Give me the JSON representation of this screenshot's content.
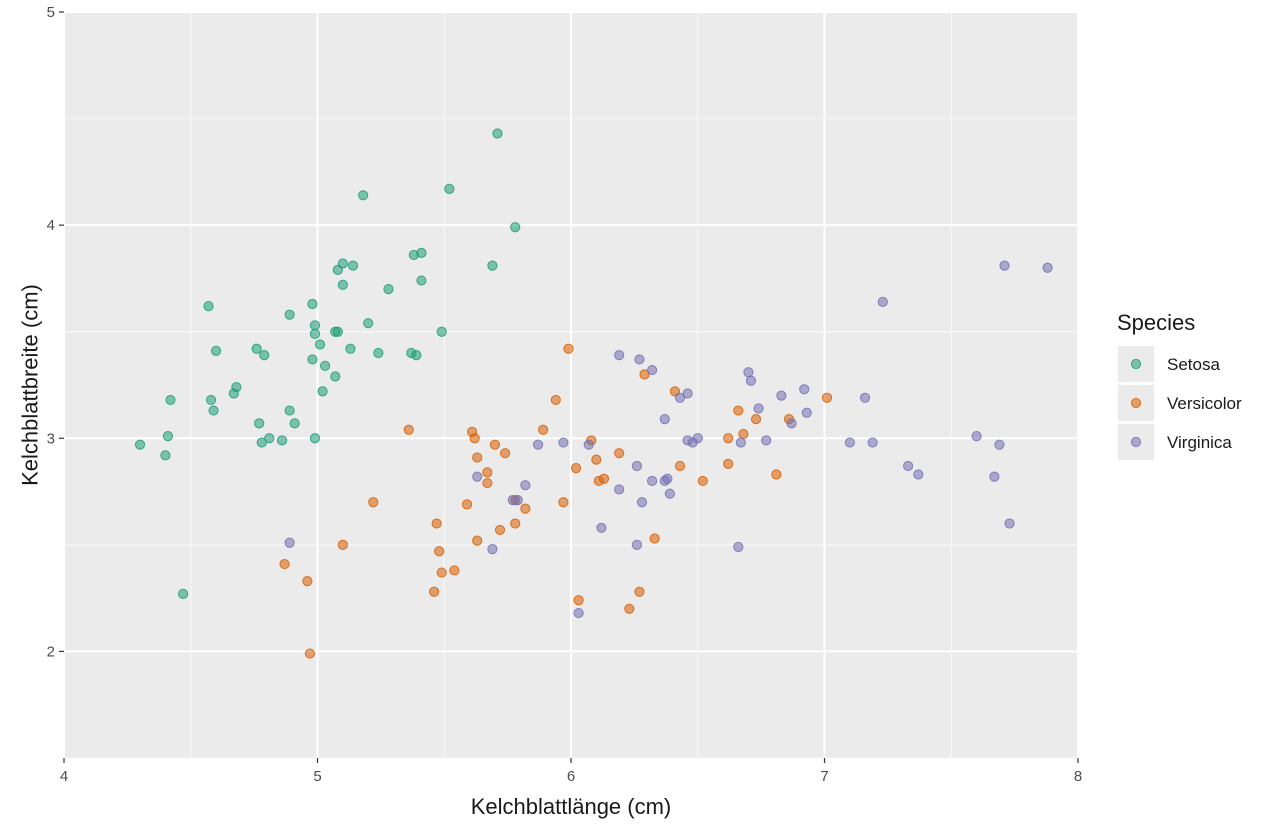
{
  "chart_data": {
    "type": "scatter",
    "title": "",
    "xlabel": "Kelchblattlänge (cm)",
    "ylabel": "Kelchblattbreite (cm)",
    "xlim": [
      4,
      8
    ],
    "ylim": [
      1.5,
      5
    ],
    "x_ticks": [
      "4",
      "5",
      "6",
      "7",
      "8"
    ],
    "y_ticks": [
      "2",
      "3",
      "4",
      "5"
    ],
    "grid": true,
    "legend": {
      "title": "Species",
      "position": "right"
    },
    "series": [
      {
        "name": "Setosa",
        "color": "#1b9e77",
        "points": [
          [
            4.3,
            2.97
          ],
          [
            4.4,
            2.92
          ],
          [
            4.41,
            3.01
          ],
          [
            4.42,
            3.18
          ],
          [
            4.47,
            2.27
          ],
          [
            4.57,
            3.62
          ],
          [
            4.58,
            3.18
          ],
          [
            4.59,
            3.13
          ],
          [
            4.6,
            3.41
          ],
          [
            4.67,
            3.21
          ],
          [
            4.68,
            3.24
          ],
          [
            4.76,
            3.42
          ],
          [
            4.77,
            3.07
          ],
          [
            4.78,
            2.98
          ],
          [
            4.79,
            3.39
          ],
          [
            4.81,
            3.0
          ],
          [
            4.86,
            2.99
          ],
          [
            4.89,
            3.13
          ],
          [
            4.89,
            3.58
          ],
          [
            4.91,
            3.07
          ],
          [
            4.98,
            3.63
          ],
          [
            4.98,
            3.37
          ],
          [
            4.99,
            3.53
          ],
          [
            4.99,
            3.49
          ],
          [
            4.99,
            3.0
          ],
          [
            5.01,
            3.44
          ],
          [
            5.02,
            3.22
          ],
          [
            5.03,
            3.34
          ],
          [
            5.07,
            3.29
          ],
          [
            5.07,
            3.5
          ],
          [
            5.08,
            3.5
          ],
          [
            5.08,
            3.79
          ],
          [
            5.1,
            3.82
          ],
          [
            5.1,
            3.72
          ],
          [
            5.13,
            3.42
          ],
          [
            5.14,
            3.81
          ],
          [
            5.18,
            4.14
          ],
          [
            5.2,
            3.54
          ],
          [
            5.24,
            3.4
          ],
          [
            5.28,
            3.7
          ],
          [
            5.37,
            3.4
          ],
          [
            5.38,
            3.86
          ],
          [
            5.39,
            3.39
          ],
          [
            5.41,
            3.87
          ],
          [
            5.41,
            3.74
          ],
          [
            5.49,
            3.5
          ],
          [
            5.52,
            4.17
          ],
          [
            5.69,
            3.81
          ],
          [
            5.71,
            4.43
          ],
          [
            5.78,
            3.99
          ]
        ]
      },
      {
        "name": "Versicolor",
        "color": "#d95f02",
        "points": [
          [
            4.87,
            2.41
          ],
          [
            4.96,
            2.33
          ],
          [
            4.97,
            1.99
          ],
          [
            5.1,
            2.5
          ],
          [
            5.22,
            2.7
          ],
          [
            5.36,
            3.04
          ],
          [
            5.46,
            2.28
          ],
          [
            5.47,
            2.6
          ],
          [
            5.48,
            2.47
          ],
          [
            5.49,
            2.37
          ],
          [
            5.54,
            2.38
          ],
          [
            5.59,
            2.69
          ],
          [
            5.61,
            3.03
          ],
          [
            5.62,
            3.0
          ],
          [
            5.63,
            2.91
          ],
          [
            5.63,
            2.52
          ],
          [
            5.67,
            2.84
          ],
          [
            5.67,
            2.79
          ],
          [
            5.7,
            2.97
          ],
          [
            5.72,
            2.57
          ],
          [
            5.74,
            2.93
          ],
          [
            5.78,
            2.71
          ],
          [
            5.78,
            2.6
          ],
          [
            5.82,
            2.67
          ],
          [
            5.89,
            3.04
          ],
          [
            5.94,
            3.18
          ],
          [
            5.97,
            2.7
          ],
          [
            5.99,
            3.42
          ],
          [
            6.02,
            2.86
          ],
          [
            6.03,
            2.24
          ],
          [
            6.08,
            2.99
          ],
          [
            6.1,
            2.9
          ],
          [
            6.11,
            2.8
          ],
          [
            6.13,
            2.81
          ],
          [
            6.19,
            2.93
          ],
          [
            6.23,
            2.2
          ],
          [
            6.27,
            2.28
          ],
          [
            6.29,
            3.3
          ],
          [
            6.33,
            2.53
          ],
          [
            6.41,
            3.22
          ],
          [
            6.43,
            2.87
          ],
          [
            6.52,
            2.8
          ],
          [
            6.62,
            3.0
          ],
          [
            6.62,
            2.88
          ],
          [
            6.66,
            3.13
          ],
          [
            6.68,
            3.02
          ],
          [
            6.73,
            3.09
          ],
          [
            6.81,
            2.83
          ],
          [
            6.86,
            3.09
          ],
          [
            7.01,
            3.19
          ]
        ]
      },
      {
        "name": "Virginica",
        "color": "#7570b3",
        "points": [
          [
            4.89,
            2.51
          ],
          [
            5.63,
            2.82
          ],
          [
            5.69,
            2.48
          ],
          [
            5.77,
            2.71
          ],
          [
            5.79,
            2.71
          ],
          [
            5.82,
            2.78
          ],
          [
            5.87,
            2.97
          ],
          [
            5.97,
            2.98
          ],
          [
            6.03,
            2.18
          ],
          [
            6.07,
            2.97
          ],
          [
            6.12,
            2.58
          ],
          [
            6.19,
            3.39
          ],
          [
            6.19,
            2.76
          ],
          [
            6.26,
            2.5
          ],
          [
            6.26,
            2.87
          ],
          [
            6.27,
            3.37
          ],
          [
            6.28,
            2.7
          ],
          [
            6.32,
            2.8
          ],
          [
            6.32,
            3.32
          ],
          [
            6.37,
            3.09
          ],
          [
            6.37,
            2.8
          ],
          [
            6.38,
            2.81
          ],
          [
            6.39,
            2.74
          ],
          [
            6.43,
            3.19
          ],
          [
            6.46,
            3.21
          ],
          [
            6.46,
            2.99
          ],
          [
            6.48,
            2.98
          ],
          [
            6.5,
            3.0
          ],
          [
            6.66,
            2.49
          ],
          [
            6.67,
            2.98
          ],
          [
            6.7,
            3.31
          ],
          [
            6.71,
            3.27
          ],
          [
            6.74,
            3.14
          ],
          [
            6.77,
            2.99
          ],
          [
            6.83,
            3.2
          ],
          [
            6.87,
            3.07
          ],
          [
            6.92,
            3.23
          ],
          [
            6.93,
            3.12
          ],
          [
            7.1,
            2.98
          ],
          [
            7.16,
            3.19
          ],
          [
            7.19,
            2.98
          ],
          [
            7.23,
            3.64
          ],
          [
            7.33,
            2.87
          ],
          [
            7.37,
            2.83
          ],
          [
            7.6,
            3.01
          ],
          [
            7.67,
            2.82
          ],
          [
            7.69,
            2.97
          ],
          [
            7.71,
            3.81
          ],
          [
            7.73,
            2.6
          ],
          [
            7.88,
            3.8
          ]
        ]
      }
    ]
  }
}
